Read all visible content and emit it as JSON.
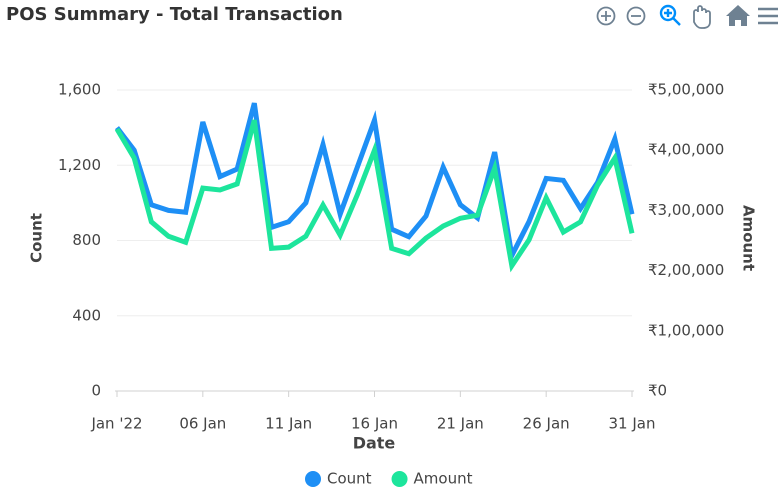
{
  "chart_data": {
    "type": "line",
    "title": "POS Summary - Total Transaction",
    "x_label": "Date",
    "y_label": "Count",
    "y2_label": "Amount",
    "categories": [
      "Jan '22",
      null,
      null,
      null,
      null,
      "06 Jan",
      null,
      null,
      null,
      null,
      "11 Jan",
      null,
      null,
      null,
      null,
      "16 Jan",
      null,
      null,
      null,
      null,
      "21 Jan",
      null,
      null,
      null,
      null,
      "26 Jan",
      null,
      null,
      null,
      null,
      "31 Jan"
    ],
    "series": [
      {
        "name": "Count",
        "color": "#1e8ff5",
        "values": [
          1400,
          1280,
          990,
          960,
          950,
          1430,
          1140,
          1180,
          1530,
          870,
          900,
          1000,
          1310,
          940,
          1190,
          1440,
          860,
          820,
          930,
          1190,
          990,
          920,
          1270,
          720,
          900,
          1130,
          1120,
          970,
          1110,
          1340,
          940
        ]
      },
      {
        "name": "Amount",
        "color": "#1de59c",
        "axis": "y2",
        "values": [
          435000,
          387000,
          281000,
          257000,
          247000,
          337000,
          334000,
          344000,
          450000,
          237000,
          239000,
          257000,
          309000,
          259000,
          326000,
          400000,
          237000,
          228000,
          254000,
          274000,
          287000,
          292000,
          370000,
          208000,
          251000,
          321000,
          264000,
          281000,
          342000,
          387000,
          262000
        ]
      }
    ],
    "ylim": [
      0,
      1600
    ],
    "yticks": [
      0,
      400,
      800,
      {
        "value": 1200,
        "label": "1,200"
      },
      {
        "value": 1600,
        "label": "1,600"
      }
    ],
    "y2lim": [
      0,
      500000
    ],
    "y2ticks": [
      {
        "value": 0,
        "label": "₹0"
      },
      {
        "value": 100000,
        "label": "₹1,00,000"
      },
      {
        "value": 200000,
        "label": "₹2,00,000"
      },
      {
        "value": 300000,
        "label": "₹3,00,000"
      },
      {
        "value": 400000,
        "label": "₹4,00,000"
      },
      {
        "value": 500000,
        "label": "₹5,00,000"
      }
    ],
    "grid": true
  }
}
